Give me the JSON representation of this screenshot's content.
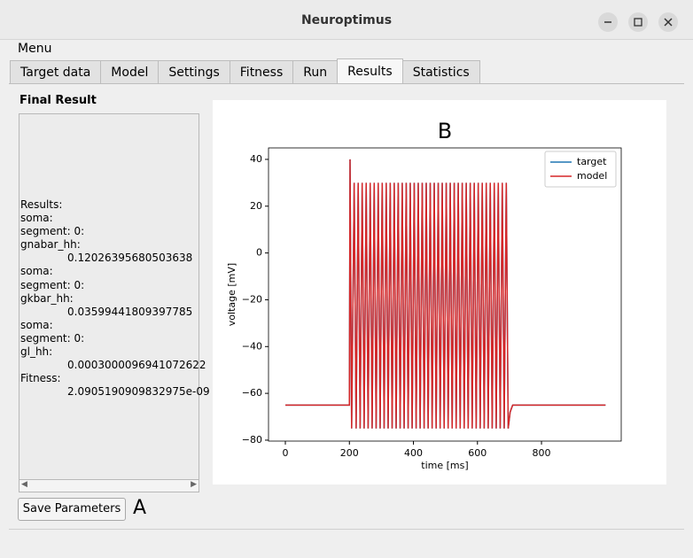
{
  "window": {
    "title": "Neuroptimus"
  },
  "menu": [
    "Menu"
  ],
  "tabs": [
    "Target data",
    "Model",
    "Settings",
    "Fitness",
    "Run",
    "Results",
    "Statistics"
  ],
  "active_tab": 5,
  "panel": {
    "title": "Final Result",
    "lines": [
      "Results:",
      "soma:",
      "segment: 0:",
      "gnabar_hh:",
      "0.12026395680503638",
      "soma:",
      "segment: 0:",
      "gkbar_hh:",
      "0.03599441809397785",
      "soma:",
      "segment: 0:",
      "gl_hh:",
      "0.0003000096941072622",
      "Fitness:",
      "2.0905190909832975e-09"
    ]
  },
  "button": "Save Parameters",
  "annotation": "A",
  "chart_data": {
    "type": "line",
    "title": "B",
    "x_label": "time [ms]",
    "y_label": "voltage [mV]",
    "x": [
      0,
      200,
      202,
      207,
      215,
      221,
      227.5,
      233.5,
      240,
      246,
      252.5,
      258.5,
      265,
      271,
      277.5,
      283.5,
      290,
      296,
      302.5,
      308.5,
      315,
      321,
      327.5,
      333.5,
      340,
      346,
      352.5,
      358.5,
      365,
      371,
      377.5,
      383.5,
      390,
      396,
      402.5,
      408.5,
      415,
      421,
      427.5,
      433.5,
      440,
      446,
      452.5,
      458.5,
      465,
      471,
      477.5,
      483.5,
      490,
      496,
      502.5,
      508.5,
      515,
      521,
      527.5,
      533.5,
      540,
      546,
      552.5,
      558.5,
      565,
      571,
      577.5,
      583.5,
      590,
      596,
      602.5,
      608.5,
      615,
      621,
      627.5,
      633.5,
      640,
      646,
      652.5,
      658.5,
      665,
      671,
      677.5,
      683.5,
      690,
      696,
      702,
      710,
      1000
    ],
    "series": [
      {
        "name": "target",
        "color": "#1f77b4",
        "values": [
          -65,
          -65,
          40,
          -75,
          30,
          -75,
          30,
          -75,
          30,
          -75,
          30,
          -75,
          30,
          -75,
          30,
          -75,
          30,
          -75,
          30,
          -75,
          30,
          -75,
          30,
          -75,
          30,
          -75,
          30,
          -75,
          30,
          -75,
          30,
          -75,
          30,
          -75,
          30,
          -75,
          30,
          -75,
          30,
          -75,
          30,
          -75,
          30,
          -75,
          30,
          -75,
          30,
          -75,
          30,
          -75,
          30,
          -75,
          30,
          -75,
          30,
          -75,
          30,
          -75,
          30,
          -75,
          30,
          -75,
          30,
          -75,
          30,
          -75,
          30,
          -75,
          30,
          -75,
          30,
          -75,
          30,
          -75,
          30,
          -75,
          30,
          -75,
          30,
          -75,
          30,
          -75,
          -68,
          -65,
          -65
        ]
      },
      {
        "name": "model",
        "color": "#d62728",
        "values": [
          -65,
          -65,
          40,
          -75,
          30,
          -75,
          30,
          -75,
          30,
          -75,
          30,
          -75,
          30,
          -75,
          30,
          -75,
          30,
          -75,
          30,
          -75,
          30,
          -75,
          30,
          -75,
          30,
          -75,
          30,
          -75,
          30,
          -75,
          30,
          -75,
          30,
          -75,
          30,
          -75,
          30,
          -75,
          30,
          -75,
          30,
          -75,
          30,
          -75,
          30,
          -75,
          30,
          -75,
          30,
          -75,
          30,
          -75,
          30,
          -75,
          30,
          -75,
          30,
          -75,
          30,
          -75,
          30,
          -75,
          30,
          -75,
          30,
          -75,
          30,
          -75,
          30,
          -75,
          30,
          -75,
          30,
          -75,
          30,
          -75,
          30,
          -75,
          30,
          -75,
          30,
          -75,
          -68,
          -65,
          -65
        ]
      }
    ],
    "xlim": [
      -52.6,
      1049
    ],
    "ylim": [
      -80.4,
      44.9
    ],
    "xticks": [
      0,
      200,
      400,
      600,
      800
    ],
    "yticks": [
      40,
      20,
      0,
      {
        "value": -20,
        "label": "−20"
      },
      {
        "value": -40,
        "label": "−40"
      },
      {
        "value": -60,
        "label": "−60"
      },
      {
        "value": -80,
        "label": "−80"
      }
    ],
    "legend": "upper right"
  }
}
